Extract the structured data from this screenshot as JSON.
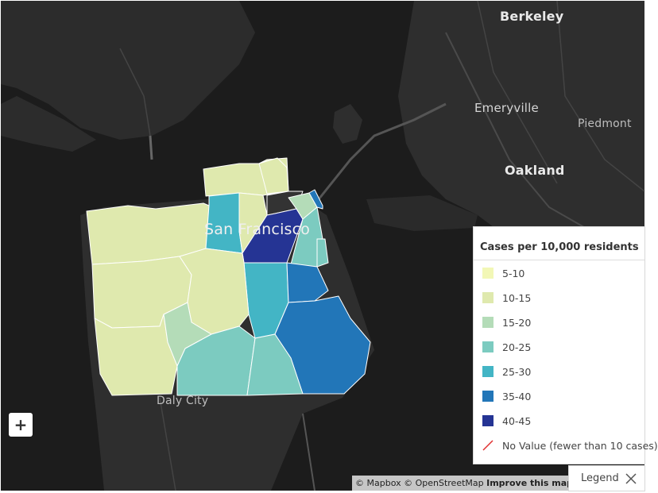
{
  "map": {
    "places": {
      "berkeley": "Berkeley",
      "emeryville": "Emeryville",
      "piedmont": "Piedmont",
      "oakland": "Oakland",
      "san_francisco": "San Francisco",
      "daly_city": "Daly City"
    },
    "zoom_in_label": "+",
    "attribution": {
      "mapbox": "© Mapbox",
      "osm": "© OpenStreetMap",
      "improve": "Improve this map"
    }
  },
  "legend": {
    "title": "Cases per 10,000 residents",
    "items": [
      {
        "label": "5-10",
        "color": "#f2f7b6"
      },
      {
        "label": "10-15",
        "color": "#dfe9ae"
      },
      {
        "label": "15-20",
        "color": "#b4dcb8"
      },
      {
        "label": "20-25",
        "color": "#7ccbc0"
      },
      {
        "label": "25-30",
        "color": "#43b5c5"
      },
      {
        "label": "35-40",
        "color": "#2276b8"
      },
      {
        "label": "40-45",
        "color": "#253494"
      }
    ],
    "no_value_label": "No Value (fewer than 10 cases)",
    "no_value_color": "#e03030",
    "toggle_label": "Legend",
    "toggle_icon": "close-icon"
  }
}
